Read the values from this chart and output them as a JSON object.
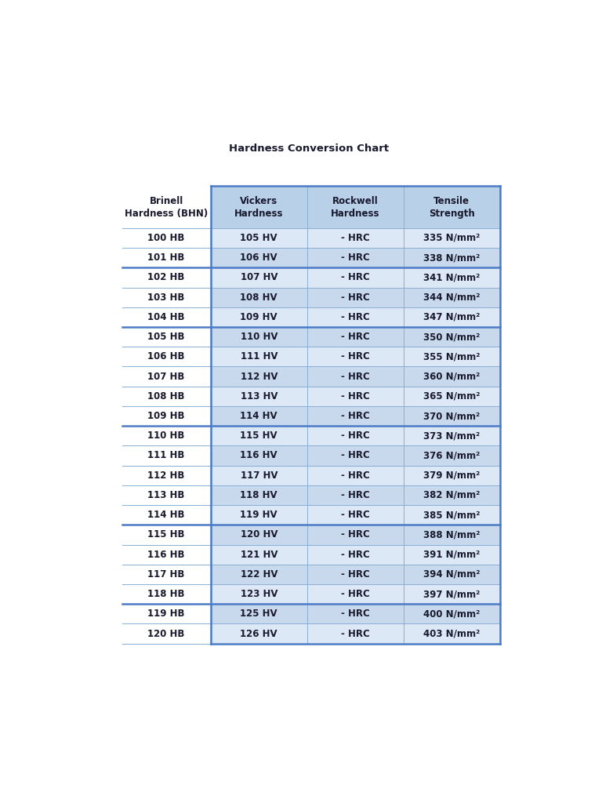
{
  "title": "Hardness Conversion Chart",
  "headers": [
    "Brinell\nHardness (BHN)",
    "Vickers\nHardness",
    "Rockwell\nHardness",
    "Tensile\nStrength"
  ],
  "rows": [
    [
      "100 HB",
      "105 HV",
      "- HRC",
      "335 N/mm²"
    ],
    [
      "101 HB",
      "106 HV",
      "- HRC",
      "338 N/mm²"
    ],
    [
      "102 HB",
      "107 HV",
      "- HRC",
      "341 N/mm²"
    ],
    [
      "103 HB",
      "108 HV",
      "- HRC",
      "344 N/mm²"
    ],
    [
      "104 HB",
      "109 HV",
      "- HRC",
      "347 N/mm²"
    ],
    [
      "105 HB",
      "110 HV",
      "- HRC",
      "350 N/mm²"
    ],
    [
      "106 HB",
      "111 HV",
      "- HRC",
      "355 N/mm²"
    ],
    [
      "107 HB",
      "112 HV",
      "- HRC",
      "360 N/mm²"
    ],
    [
      "108 HB",
      "113 HV",
      "- HRC",
      "365 N/mm²"
    ],
    [
      "109 HB",
      "114 HV",
      "- HRC",
      "370 N/mm²"
    ],
    [
      "110 HB",
      "115 HV",
      "- HRC",
      "373 N/mm²"
    ],
    [
      "111 HB",
      "116 HV",
      "- HRC",
      "376 N/mm²"
    ],
    [
      "112 HB",
      "117 HV",
      "- HRC",
      "379 N/mm²"
    ],
    [
      "113 HB",
      "118 HV",
      "- HRC",
      "382 N/mm²"
    ],
    [
      "114 HB",
      "119 HV",
      "- HRC",
      "385 N/mm²"
    ],
    [
      "115 HB",
      "120 HV",
      "- HRC",
      "388 N/mm²"
    ],
    [
      "116 HB",
      "121 HV",
      "- HRC",
      "391 N/mm²"
    ],
    [
      "117 HB",
      "122 HV",
      "- HRC",
      "394 N/mm²"
    ],
    [
      "118 HB",
      "123 HV",
      "- HRC",
      "397 N/mm²"
    ],
    [
      "119 HB",
      "125 HV",
      "- HRC",
      "400 N/mm²"
    ],
    [
      "120 HB",
      "126 HV",
      "- HRC",
      "403 N/mm²"
    ]
  ],
  "header_col0_bg": "#ffffff",
  "header_col13_bg": "#b8d0e8",
  "cell_col0_bg": "#ffffff",
  "cell_col13_light": "#dce8f5",
  "cell_col13_dark": "#c8d9ee",
  "thick_border_color": "#4a7bc4",
  "thin_border_color": "#8aafd4",
  "text_color": "#1a1a2e",
  "title_color": "#1a1a2e",
  "background_color": "#ffffff",
  "thick_lines_after_rows": [
    1,
    4,
    9,
    14,
    18
  ],
  "fig_width": 7.68,
  "fig_height": 10.24,
  "title_fontsize": 9.5,
  "header_fontsize": 8.5,
  "cell_fontsize": 8.5
}
